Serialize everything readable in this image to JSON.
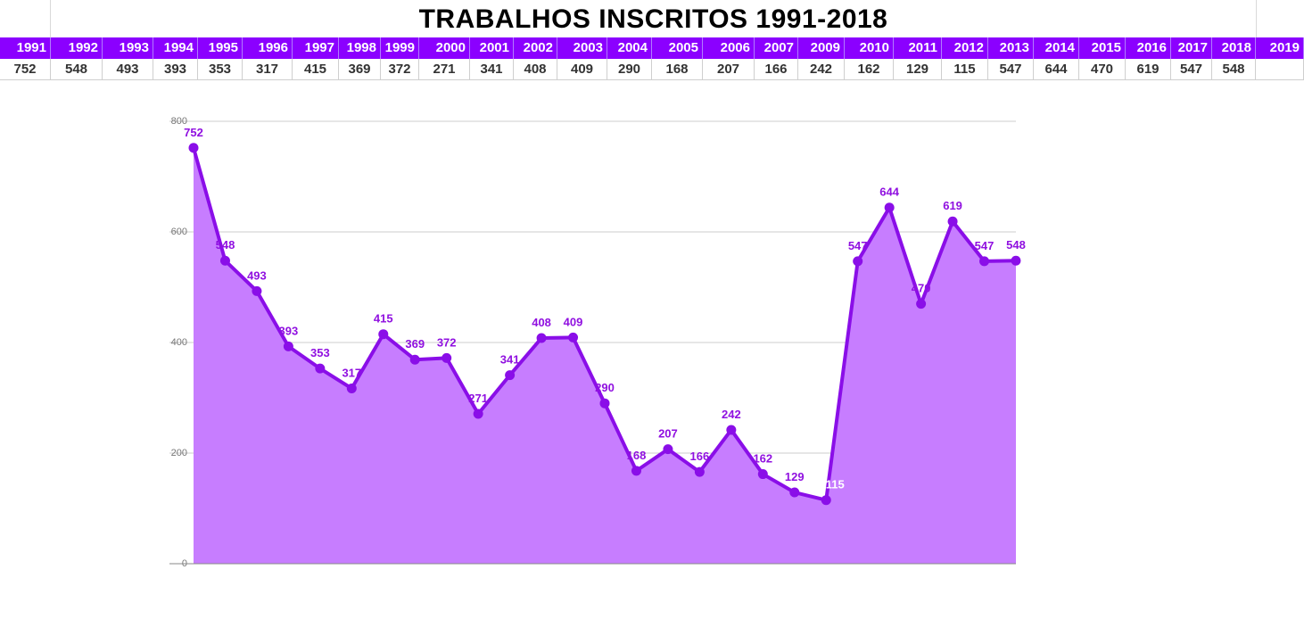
{
  "title": "TRABALHOS INSCRITOS  1991-2018",
  "table": {
    "years": [
      "1991",
      "1992",
      "1993",
      "1994",
      "1995",
      "1996",
      "1997",
      "1998",
      "1999",
      "2000",
      "2001",
      "2002",
      "2003",
      "2004",
      "2005",
      "2006",
      "2007",
      "2009",
      "2010",
      "2011",
      "2012",
      "2013",
      "2014",
      "2015",
      "2016",
      "2017",
      "2018",
      "2019"
    ],
    "values": [
      "752",
      "548",
      "493",
      "393",
      "353",
      "317",
      "415",
      "369",
      "372",
      "271",
      "341",
      "408",
      "409",
      "290",
      "168",
      "207",
      "166",
      "242",
      "162",
      "129",
      "115",
      "547",
      "644",
      "470",
      "619",
      "547",
      "548",
      ""
    ]
  },
  "colors": {
    "accent": "#8b00ff",
    "line": "#8a0ee8",
    "fill": "#c77dff",
    "label": "#9010e0"
  },
  "chart_data": {
    "type": "area",
    "ylim": [
      0,
      800
    ],
    "yticks": [
      "0",
      "200",
      "400",
      "600",
      "800"
    ],
    "grid": true,
    "values": [
      752,
      548,
      493,
      393,
      353,
      317,
      415,
      369,
      372,
      271,
      341,
      408,
      409,
      290,
      168,
      207,
      166,
      242,
      162,
      129,
      115,
      547,
      644,
      470,
      619,
      547,
      548
    ],
    "labels": [
      "752",
      "548",
      "493",
      "393",
      "353",
      "317",
      "415",
      "369",
      "372",
      "271",
      "341",
      "408",
      "409",
      "290",
      "168",
      "207",
      "166",
      "242",
      "162",
      "129",
      "115",
      "547",
      "644",
      "470",
      "619",
      "547",
      "548"
    ]
  }
}
